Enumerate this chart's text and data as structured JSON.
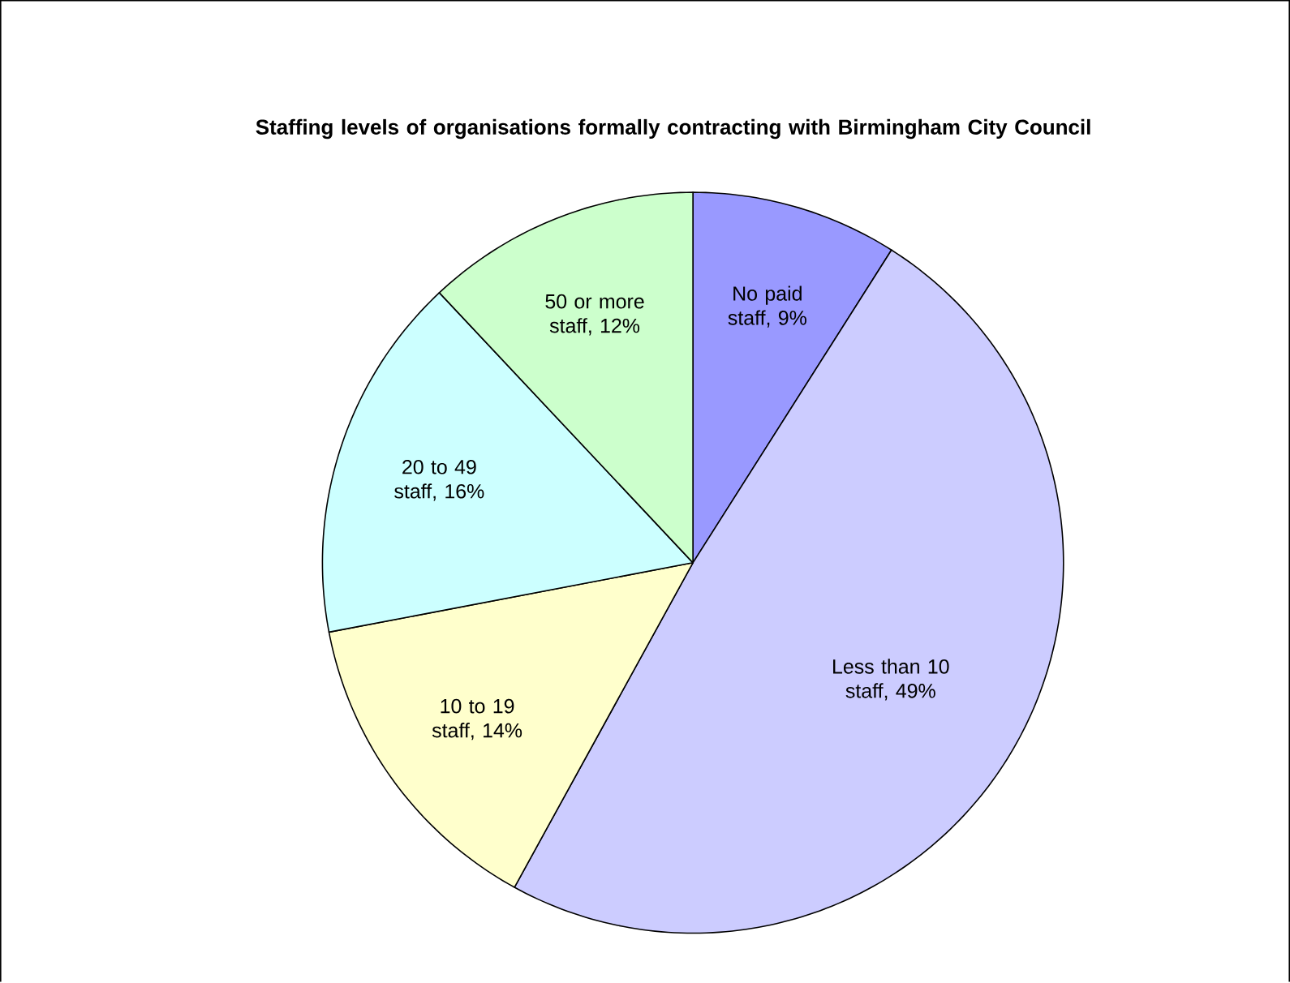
{
  "chart_data": {
    "type": "pie",
    "title": "Staffing levels of organisations formally contracting with Birmingham City Council",
    "values": [
      9,
      49,
      14,
      16,
      12
    ],
    "value_labels": [
      "No paid staff, 9%",
      "Less than 10 staff, 49%",
      "10 to 19 staff, 14%",
      "20 to 49 staff, 16%",
      "50 or more staff, 12%"
    ],
    "colors": [
      "#9999ff",
      "#ccccff",
      "#ffffcc",
      "#ccffff",
      "#ccffcc"
    ]
  }
}
